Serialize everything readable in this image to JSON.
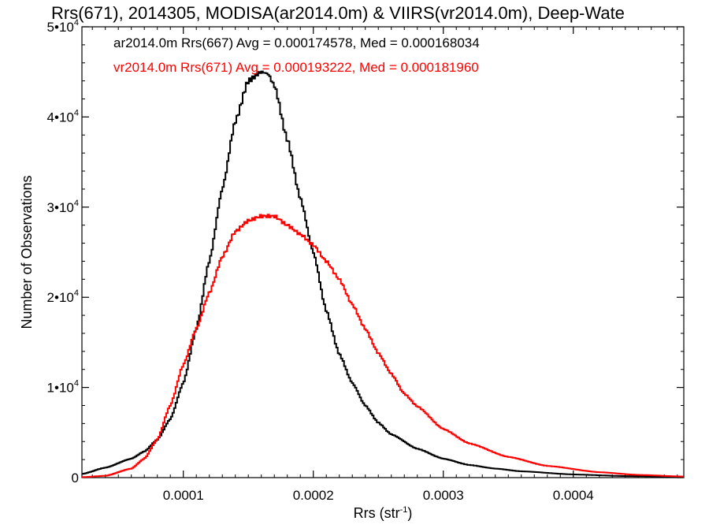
{
  "chart_data": {
    "type": "line",
    "title": "Rrs(671), 2014305, MODISA(ar2014.0m) & VIIRS(vr2014.0m), Deep-Wate",
    "xlabel": "Rrs (str",
    "xlabel_sup": "-1",
    "xlabel_close": ")",
    "ylabel": "Number of Observations",
    "xlim": [
      2.2e-05,
      0.000485
    ],
    "ylim": [
      0,
      50000
    ],
    "x_ticks": [
      {
        "value": 0.0001,
        "label": "0.0001"
      },
      {
        "value": 0.0002,
        "label": "0.0002"
      },
      {
        "value": 0.0003,
        "label": "0.0003"
      },
      {
        "value": 0.0004,
        "label": "0.0004"
      }
    ],
    "y_ticks": [
      {
        "value": 0,
        "mant": "0",
        "exp": ""
      },
      {
        "value": 10000,
        "mant": "1•10",
        "exp": "4"
      },
      {
        "value": 20000,
        "mant": "2•10",
        "exp": "4"
      },
      {
        "value": 30000,
        "mant": "3•10",
        "exp": "4"
      },
      {
        "value": 40000,
        "mant": "4•10",
        "exp": "4"
      },
      {
        "value": 50000,
        "mant": "5•10",
        "exp": "4"
      }
    ],
    "annotations": [
      "ar2014.0m Rrs(667) Avg = 0.000174578, Med = 0.000168034",
      "vr2014.0m Rrs(671) Avg = 0.000193222, Med = 0.000181960"
    ],
    "series": [
      {
        "color": "#000000",
        "x": [
          2.2e-05,
          4e-05,
          6e-05,
          7e-05,
          8e-05,
          9e-05,
          0.0001,
          0.00011,
          0.00012,
          0.00013,
          0.00014,
          0.00015,
          0.00016,
          0.000165,
          0.00017,
          0.00018,
          0.00019,
          0.0002,
          0.00021,
          0.00022,
          0.00023,
          0.00024,
          0.00025,
          0.00026,
          0.00028,
          0.0003,
          0.00032,
          0.00034,
          0.00036,
          0.0004,
          0.00044,
          0.000485
        ],
        "y": [
          400,
          1100,
          2100,
          2900,
          4200,
          6500,
          10500,
          16500,
          24000,
          32000,
          39500,
          44000,
          45000,
          44800,
          43500,
          37500,
          31000,
          25000,
          18500,
          13700,
          10500,
          8000,
          6100,
          4800,
          3200,
          2100,
          1400,
          1000,
          700,
          350,
          170,
          90
        ]
      },
      {
        "color": "#ff0000",
        "x": [
          2.2e-05,
          4e-05,
          6e-05,
          7e-05,
          8e-05,
          9e-05,
          0.0001,
          0.00011,
          0.00012,
          0.00013,
          0.00014,
          0.00015,
          0.00016,
          0.00017,
          0.00018,
          0.00019,
          0.0002,
          0.00021,
          0.00022,
          0.00023,
          0.00024,
          0.00025,
          0.00026,
          0.00027,
          0.00028,
          0.0003,
          0.00032,
          0.00035,
          0.00038,
          0.00042,
          0.00045,
          0.000485
        ],
        "y": [
          50,
          200,
          1000,
          2100,
          4200,
          8000,
          12500,
          16500,
          20500,
          24500,
          27300,
          28500,
          29000,
          29000,
          28000,
          27000,
          25800,
          24000,
          22000,
          19200,
          16500,
          13800,
          11500,
          9300,
          7900,
          5400,
          3800,
          2300,
          1300,
          600,
          300,
          120
        ]
      }
    ]
  }
}
